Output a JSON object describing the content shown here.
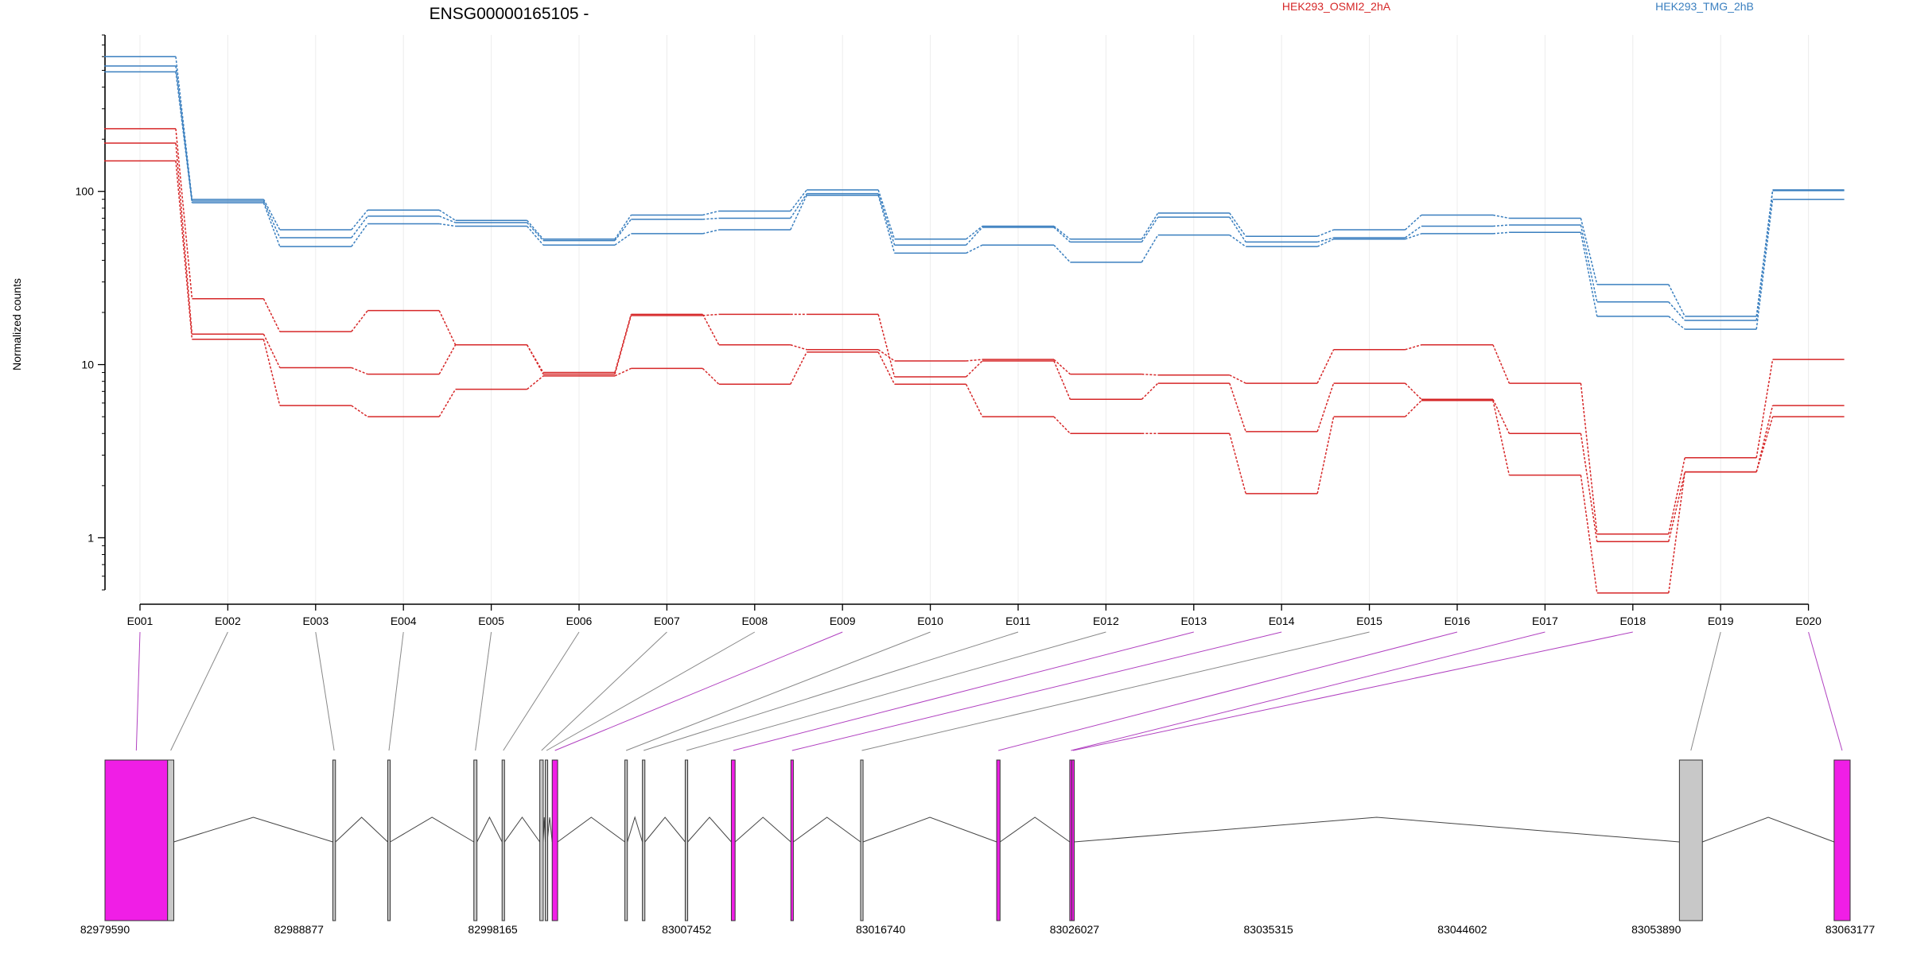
{
  "chart_data": {
    "type": "line",
    "title": "ENSG00000165105 -",
    "ylabel": "Normalized counts",
    "xlabel": "",
    "yscale": "log",
    "ylim": [
      0.5,
      800
    ],
    "yticks": [
      1,
      10,
      100
    ],
    "ytick_labels": [
      "1",
      "10",
      "100"
    ],
    "legend_placement": "top",
    "groups": [
      {
        "name": "HEK293_OSMI2_2hA",
        "color": "#d62728"
      },
      {
        "name": "HEK293_TMG_2hB",
        "color": "#3a7fbf"
      }
    ],
    "categories": [
      "E001",
      "E002",
      "E003",
      "E004",
      "E005",
      "E006",
      "E007",
      "E008",
      "E009",
      "E010",
      "E011",
      "E012",
      "E013",
      "E014",
      "E015",
      "E016",
      "E017",
      "E018",
      "E019",
      "E020"
    ],
    "series": [
      {
        "group": 1,
        "values": [
          600,
          90,
          60,
          78,
          68,
          53,
          73,
          77,
          102,
          53,
          63,
          53,
          75,
          55,
          60,
          73,
          70,
          29,
          19,
          102
        ]
      },
      {
        "group": 1,
        "values": [
          530,
          88,
          54,
          72,
          66,
          52,
          69,
          70,
          97,
          49,
          62,
          51,
          71,
          51,
          54,
          63,
          64,
          23,
          18,
          101
        ]
      },
      {
        "group": 1,
        "values": [
          490,
          86,
          48,
          65,
          63,
          49,
          57,
          60,
          95,
          44,
          49,
          39,
          56,
          48,
          53,
          57,
          58,
          19,
          16,
          90
        ]
      },
      {
        "group": 0,
        "values": [
          230,
          24,
          15.5,
          20.5,
          13,
          9,
          19.5,
          13,
          12.2,
          10.5,
          10.7,
          8.8,
          8.7,
          7.8,
          12.2,
          13,
          7.8,
          1.05,
          2.9,
          10.7
        ]
      },
      {
        "group": 0,
        "values": [
          190,
          15,
          9.6,
          8.8,
          13,
          8.8,
          19.2,
          19.5,
          19.5,
          8.5,
          10.5,
          6.3,
          7.8,
          4.1,
          7.8,
          6.3,
          4.0,
          0.95,
          2.4,
          5.8
        ]
      },
      {
        "group": 0,
        "values": [
          150,
          14,
          5.8,
          5.0,
          7.2,
          8.6,
          9.5,
          7.7,
          11.8,
          7.7,
          5.0,
          4.0,
          4.0,
          1.8,
          5.0,
          6.2,
          2.3,
          0.48,
          2.4,
          5.0
        ]
      }
    ]
  },
  "gene_model": {
    "start": 82979590,
    "end": 83063177,
    "tick_labels": [
      "82979590",
      "82988877",
      "82998165",
      "83007452",
      "83016740",
      "83026027",
      "83035315",
      "83044602",
      "83053890",
      "83063177"
    ],
    "highlight_color": "#f01ee6",
    "normal_color": "#c8c8c8",
    "exons": [
      {
        "id": "E001",
        "start": 82979590,
        "end": 82982589,
        "highlight": true
      },
      {
        "id": "E002",
        "start": 82982589,
        "end": 82982886,
        "highlight": false
      },
      {
        "id": "E003",
        "start": 82990502,
        "end": 82990630,
        "highlight": false
      },
      {
        "id": "E004",
        "start": 82993132,
        "end": 82993250,
        "highlight": false
      },
      {
        "id": "E005",
        "start": 82997257,
        "end": 82997405,
        "highlight": false
      },
      {
        "id": "E006",
        "start": 82998609,
        "end": 82998727,
        "highlight": false
      },
      {
        "id": "E007",
        "start": 83000415,
        "end": 83000580,
        "highlight": false
      },
      {
        "id": "E008",
        "start": 83000680,
        "end": 83000770,
        "highlight": false
      },
      {
        "id": "E009",
        "start": 83001010,
        "end": 83001270,
        "highlight": true
      },
      {
        "id": "E010",
        "start": 83004490,
        "end": 83004610,
        "highlight": false
      },
      {
        "id": "E011",
        "start": 83005330,
        "end": 83005450,
        "highlight": false
      },
      {
        "id": "E012",
        "start": 83007380,
        "end": 83007500,
        "highlight": false
      },
      {
        "id": "E013",
        "start": 83009590,
        "end": 83009770,
        "highlight": true
      },
      {
        "id": "E014",
        "start": 83012440,
        "end": 83012560,
        "highlight": true
      },
      {
        "id": "E015",
        "start": 83015780,
        "end": 83015900,
        "highlight": false
      },
      {
        "id": "E016",
        "start": 83022300,
        "end": 83022460,
        "highlight": true
      },
      {
        "id": "E017",
        "start": 83025800,
        "end": 83025900,
        "highlight": true
      },
      {
        "id": "E018",
        "start": 83025900,
        "end": 83026000,
        "highlight": true
      },
      {
        "id": "E019",
        "start": 83055000,
        "end": 83056100,
        "highlight": false
      },
      {
        "id": "E020",
        "start": 83062410,
        "end": 83063177,
        "highlight": true
      }
    ]
  }
}
